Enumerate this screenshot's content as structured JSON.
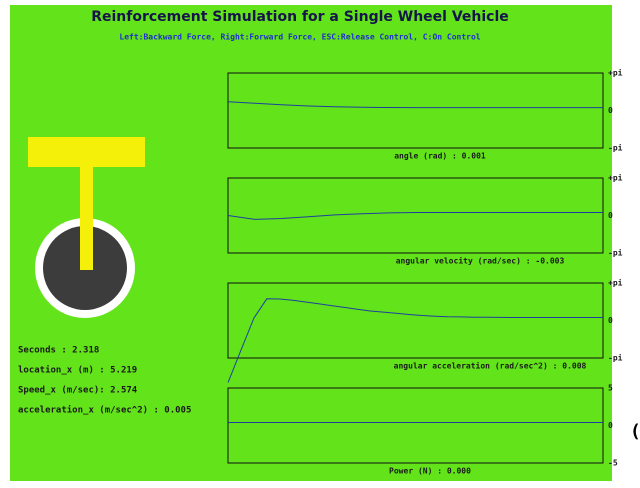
{
  "header": {
    "title": "Reinforcement Simulation for a Single Wheel Vehicle",
    "subtitle": "Left:Backward Force,  Right:Forward Force,  ESC:Release Control, C:On Control"
  },
  "status": [
    "Seconds : 2.318",
    "location_x (m) : 5.219",
    "Speed_x (m/sec): 2.574",
    "acceleration_x (m/sec^2) : 0.005"
  ],
  "graphs": [
    {
      "label": "angle (rad) : 0.001",
      "ylim": [
        -3.1416,
        3.1416
      ],
      "yticks": [
        {
          "value": 3.1416,
          "label": "+pi"
        },
        0,
        {
          "value": -3.1416,
          "label": "-pi"
        }
      ],
      "trace": [
        0.74,
        0.6,
        0.48,
        0.38,
        0.31,
        0.27,
        0.25,
        0.24,
        0.24,
        0.24,
        0.24,
        0.24,
        0.24,
        0.24,
        0.24
      ]
    },
    {
      "label": "angular velocity (rad/sec) : -0.003",
      "ylim": [
        -3.1416,
        3.1416
      ],
      "yticks": [
        {
          "value": 3.1416,
          "label": "+pi"
        },
        0,
        {
          "value": -3.1416,
          "label": "-pi"
        }
      ],
      "trace": [
        0,
        -0.33,
        -0.25,
        -0.1,
        0.05,
        0.15,
        0.22,
        0.25,
        0.25,
        0.25,
        0.25,
        0.25,
        0.25,
        0.25,
        0.25
      ]
    },
    {
      "label": "angular acceleration (rad/sec^2) : 0.008",
      "ylim": [
        -3.1416,
        3.1416
      ],
      "yticks": [
        {
          "value": 3.1416,
          "label": "+pi"
        },
        0,
        {
          "value": -3.1416,
          "label": "-pi"
        }
      ],
      "trace": [
        -5.2,
        -2.5,
        0.2,
        1.82,
        1.8,
        1.7,
        1.55,
        1.4,
        1.25,
        1.1,
        0.95,
        0.8,
        0.7,
        0.6,
        0.5,
        0.42,
        0.36,
        0.32,
        0.3,
        0.28,
        0.27,
        0.26,
        0.25,
        0.25,
        0.25,
        0.25,
        0.25,
        0.25,
        0.25,
        0.25
      ]
    },
    {
      "label": "Power (N) : 0.000",
      "ylim": [
        -5,
        5
      ],
      "yticks": [
        5,
        0,
        -5
      ],
      "trace": [
        0.4,
        0.4,
        0.4,
        0.4,
        0.4,
        0.4,
        0.4,
        0.4,
        0.4,
        0.4
      ]
    }
  ],
  "edge_text": "("
}
